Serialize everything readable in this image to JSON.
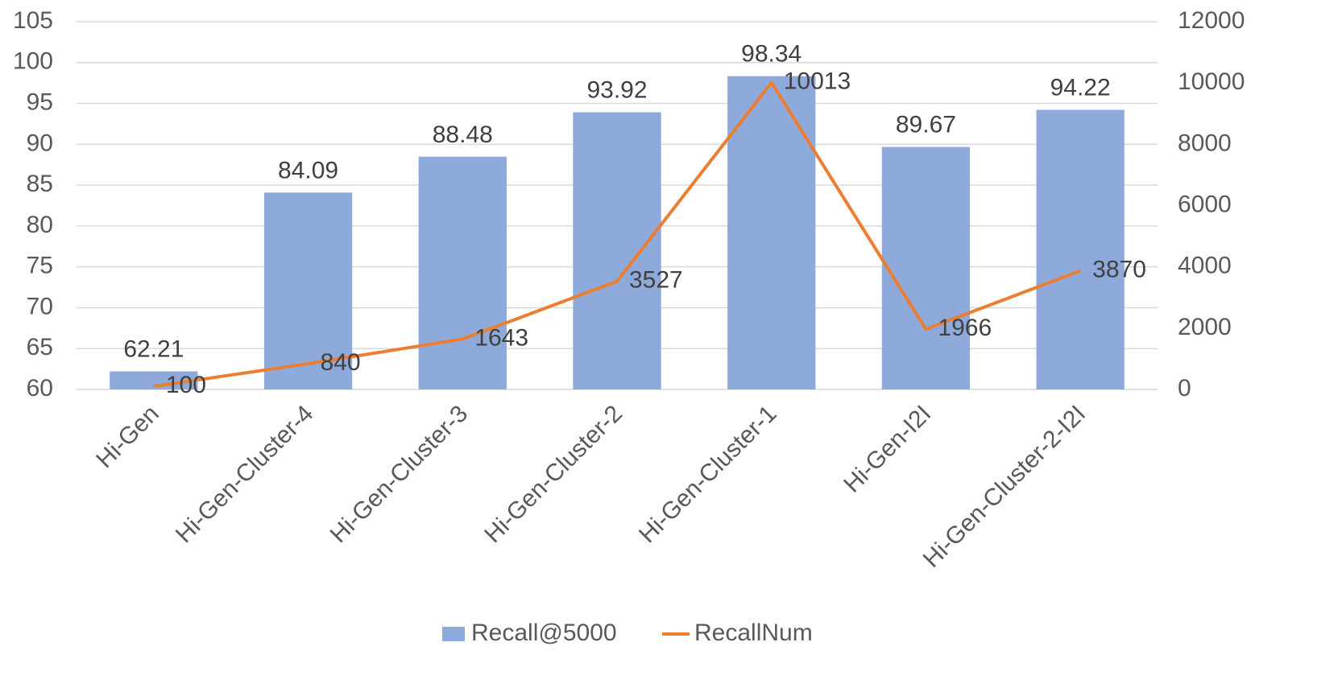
{
  "chart_data": {
    "type": "bar+line",
    "categories": [
      "Hi-Gen",
      "Hi-Gen-Cluster-4",
      "Hi-Gen-Cluster-3",
      "Hi-Gen-Cluster-2",
      "Hi-Gen-Cluster-1",
      "Hi-Gen-I2I",
      "Hi-Gen-Cluster-2-I2I"
    ],
    "series": [
      {
        "name": "Recall@5000",
        "type": "bar",
        "axis": "left",
        "values": [
          62.21,
          84.09,
          88.48,
          93.92,
          98.34,
          89.67,
          94.22
        ],
        "labels": [
          "62.21",
          "84.09",
          "88.48",
          "93.92",
          "98.34",
          "89.67",
          "94.22"
        ],
        "color": "#8EAADB"
      },
      {
        "name": "RecallNum",
        "type": "line",
        "axis": "right",
        "values": [
          100,
          840,
          1643,
          3527,
          10013,
          1966,
          3870
        ],
        "labels": [
          "100",
          "840",
          "1643",
          "3527",
          "10013",
          "1966",
          "3870"
        ],
        "color": "#ED7D31"
      }
    ],
    "y_left": {
      "ylim": [
        60,
        105
      ],
      "ticks": [
        60,
        65,
        70,
        75,
        80,
        85,
        90,
        95,
        100,
        105
      ],
      "tick_labels": [
        "60",
        "65",
        "70",
        "75",
        "80",
        "85",
        "90",
        "95",
        "100",
        "105"
      ]
    },
    "y_right": {
      "ylim": [
        0,
        12000
      ],
      "ticks": [
        0,
        2000,
        4000,
        6000,
        8000,
        10000,
        12000
      ],
      "tick_labels": [
        "0",
        "2000",
        "4000",
        "6000",
        "8000",
        "10000",
        "12000"
      ]
    },
    "grid": true,
    "grid_color": "#D9D9D9",
    "legend": "bottom-center"
  }
}
